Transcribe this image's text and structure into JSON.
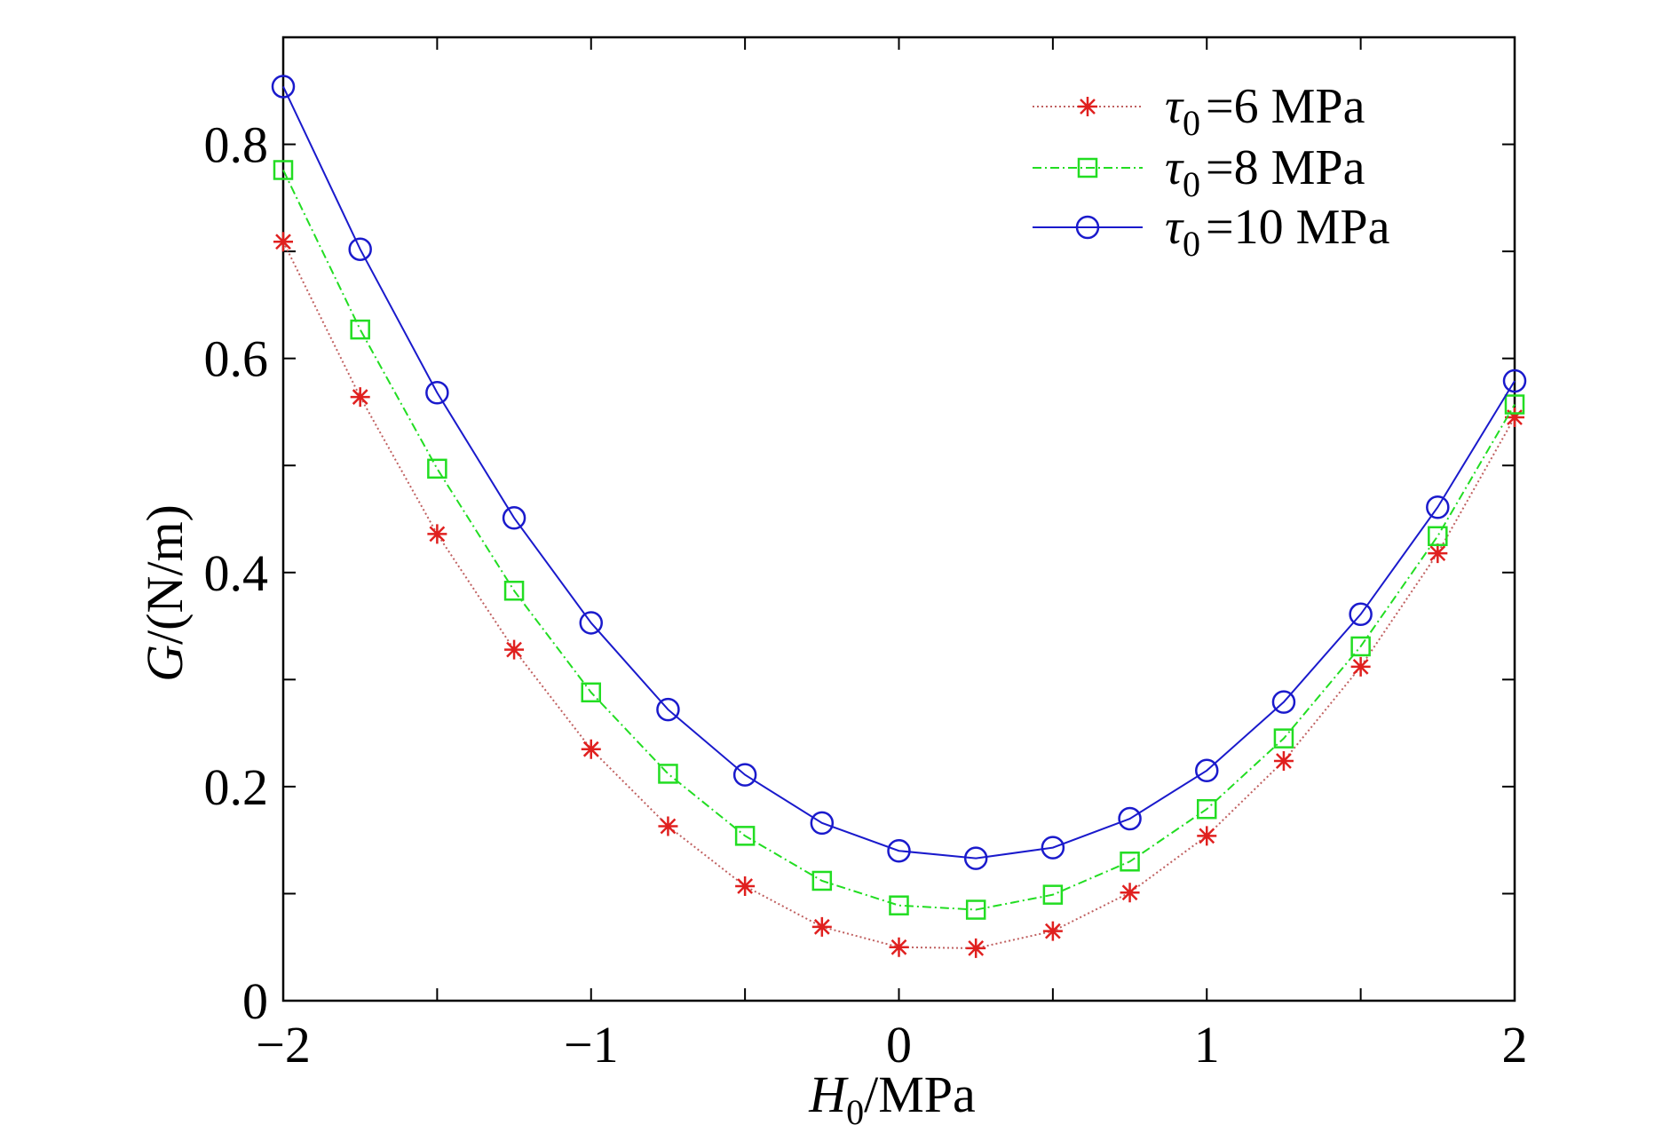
{
  "chart_data": {
    "type": "line",
    "xlabel": {
      "symbol": "H",
      "subscript": "0",
      "rest": "/MPa"
    },
    "ylabel": {
      "symbol": "G",
      "rest": "/(N/m)"
    },
    "xlim": [
      -2,
      2
    ],
    "ylim": [
      0,
      0.9
    ],
    "x_ticks": [
      -2,
      -1.5,
      -1,
      -0.5,
      0,
      0.5,
      1,
      1.5,
      2
    ],
    "x_tick_labels": [
      {
        "value": -2,
        "label": "−2"
      },
      {
        "value": -1,
        "label": "−1"
      },
      {
        "value": 0,
        "label": "0"
      },
      {
        "value": 1,
        "label": "1"
      },
      {
        "value": 2,
        "label": "2"
      }
    ],
    "y_ticks": [
      0,
      0.1,
      0.2,
      0.3,
      0.4,
      0.5,
      0.6,
      0.7,
      0.8,
      0.9
    ],
    "y_tick_labels": [
      {
        "value": 0,
        "label": "0"
      },
      {
        "value": 0.2,
        "label": "0.2"
      },
      {
        "value": 0.4,
        "label": "0.4"
      },
      {
        "value": 0.6,
        "label": "0.6"
      },
      {
        "value": 0.8,
        "label": "0.8"
      }
    ],
    "grid": false,
    "legend_position": "top-right",
    "x": [
      -2,
      -1.75,
      -1.5,
      -1.25,
      -1,
      -0.75,
      -0.5,
      -0.25,
      0,
      0.25,
      0.5,
      0.75,
      1,
      1.25,
      1.5,
      1.75,
      2
    ],
    "series": [
      {
        "name": {
          "symbol": "τ",
          "subscript": "0",
          "rest": "=6 MPa"
        },
        "color": "#e0201f",
        "line_color": "#c06060",
        "marker": "asterisk",
        "line_style": "dotted",
        "values": [
          0.709,
          0.564,
          0.436,
          0.328,
          0.235,
          0.163,
          0.107,
          0.069,
          0.05,
          0.049,
          0.065,
          0.101,
          0.154,
          0.224,
          0.312,
          0.418,
          0.545
        ]
      },
      {
        "name": {
          "symbol": "τ",
          "subscript": "0",
          "rest": "=8 MPa"
        },
        "color": "#22dd22",
        "line_color": "#22dd22",
        "marker": "square",
        "line_style": "dash-dot",
        "values": [
          0.776,
          0.627,
          0.497,
          0.383,
          0.288,
          0.212,
          0.154,
          0.112,
          0.089,
          0.085,
          0.099,
          0.13,
          0.179,
          0.245,
          0.331,
          0.434,
          0.557
        ]
      },
      {
        "name": {
          "symbol": "τ",
          "subscript": "0",
          "rest": "=10 MPa"
        },
        "color": "#1a1acc",
        "line_color": "#1a1acc",
        "marker": "circle",
        "line_style": "solid",
        "values": [
          0.854,
          0.702,
          0.568,
          0.451,
          0.353,
          0.272,
          0.211,
          0.166,
          0.14,
          0.133,
          0.143,
          0.17,
          0.215,
          0.279,
          0.361,
          0.461,
          0.579
        ]
      }
    ]
  }
}
